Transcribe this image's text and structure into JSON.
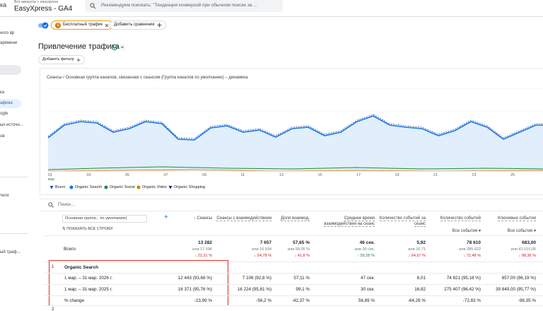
{
  "header": {
    "brand": "ка",
    "breadcrumb": "Все аккаунты > easyxpress",
    "property": "EasyXpress - GA4",
    "search": "Рекомендуем поискать: \"Тенденция конверсий при обычном поиске за ..."
  },
  "sidebar": [
    "ного вр",
    "аремени",
    "ка",
    "афика",
    "ogle",
    "ых источн...",
    "ов",
    "теля",
    "ый траф..."
  ],
  "comparison": {
    "badge": "S",
    "segment": "Бесплатный трафик",
    "add": "Добавить сравнение"
  },
  "report": {
    "title": "Привлечение трафика",
    "add_filter": "Добавить фильтр"
  },
  "chart": {
    "title": "Сеансы / Основная группа каналов, связанная с сеансом (Группа каналов по умолчанию) – динамика",
    "x_labels": [
      "01",
      "03",
      "05",
      "07",
      "09",
      "11",
      "13",
      "15",
      "17",
      "19",
      "21",
      "23",
      "25"
    ],
    "month": "мар",
    "legend": [
      {
        "name": "Всего",
        "color": "#174ea6"
      },
      {
        "name": "Organic Search",
        "color": "#1a73e8"
      },
      {
        "name": "Organic Social",
        "color": "#1e8e3e"
      },
      {
        "name": "Organic Video",
        "color": "#e37400"
      },
      {
        "name": "Organic Shopping",
        "color": "#1a237e"
      }
    ]
  },
  "table": {
    "search": "Поиск...",
    "dimension": "Основная группа... по умолчанию)",
    "show_rows": "ПОКАЗАТЬ ВСЕ СТРОКИ",
    "columns": [
      "Сеансы",
      "Сеансы с взаимодействием",
      "Доля взаимод.",
      "Среднее время взаимодействия на сеанс",
      "Количество событий за сеанс",
      "Количество событий",
      "Ключевые события"
    ],
    "column_filters": {
      "5": "Все события",
      "6": "Все события"
    },
    "total": {
      "label": "Всего",
      "cells": [
        [
          "13 282",
          "или 17 096",
          "↓ 22,31 %"
        ],
        [
          "7 657",
          "или 16 934",
          "↓ 54,78 %"
        ],
        [
          "57,65 %",
          "или 99,05 %",
          "↓ 41,8 %"
        ],
        [
          "46 сек.",
          "или 30 сек.",
          "↑ 55,05 %"
        ],
        [
          "5,92",
          "или 16,71",
          "↓ 64,57 %"
        ],
        [
          "78 610",
          "или 285 622",
          "↓ 72,48 %"
        ],
        [
          "683,00",
          "или 41 610,00",
          "↓ 98,36 %"
        ]
      ]
    },
    "group": {
      "index": "1",
      "name": "Organic Search",
      "rows": [
        {
          "label": "1 мар. – 31 мар. 2026 г.",
          "cells": [
            "12 443 (93,68 %)",
            "7 106 (92,8 %)",
            "57,11 %",
            "47 сек.",
            "6,01",
            "74 821 (95,18 %)",
            "657,00 (96,19 %)"
          ]
        },
        {
          "label": "1 мар. – 31 мар. 2025 г.",
          "cells": [
            "16 371 (95,76 %)",
            "16 224 (95,81 %)",
            "99,1 %",
            "30 сек.",
            "16,82",
            "275 407 (96,42 %)",
            "39 849,00 (95,77 %)"
          ]
        },
        {
          "label": "% change",
          "cells": [
            "-23,99 %",
            "-56,2 %",
            "-42,37 %",
            "56,89 %",
            "-64,26 %",
            "-72,83 %",
            "-98,35 %"
          ]
        }
      ]
    },
    "next_index": "2"
  }
}
